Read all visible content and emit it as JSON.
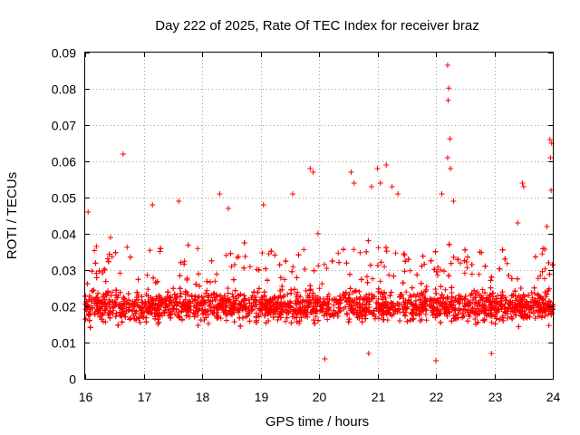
{
  "chart_data": {
    "type": "scatter",
    "title": "Day 222 of 2025, Rate Of TEC Index for receiver braz",
    "xlabel": "GPS time / hours",
    "ylabel": "ROTI / TECUs",
    "xlim": [
      16,
      24
    ],
    "ylim": [
      0,
      0.09
    ],
    "xticks": [
      "16",
      "17",
      "18",
      "19",
      "20",
      "21",
      "22",
      "23",
      "24"
    ],
    "yticks": [
      "0",
      "0.01",
      "0.02",
      "0.03",
      "0.04",
      "0.05",
      "0.06",
      "0.07",
      "0.08",
      "0.09"
    ],
    "grid": true,
    "marker": "+",
    "color": "#ff0000",
    "dense_band": {
      "x_start": 16,
      "x_end": 24,
      "typical_range": [
        0.008,
        0.035
      ],
      "center": 0.02
    },
    "notable_points": [
      {
        "x": 16.05,
        "y": 0.046
      },
      {
        "x": 16.65,
        "y": 0.062
      },
      {
        "x": 17.15,
        "y": 0.048
      },
      {
        "x": 17.6,
        "y": 0.049
      },
      {
        "x": 18.3,
        "y": 0.051
      },
      {
        "x": 18.45,
        "y": 0.047
      },
      {
        "x": 19.05,
        "y": 0.048
      },
      {
        "x": 19.55,
        "y": 0.051
      },
      {
        "x": 19.85,
        "y": 0.058
      },
      {
        "x": 19.9,
        "y": 0.057
      },
      {
        "x": 20.55,
        "y": 0.057
      },
      {
        "x": 20.6,
        "y": 0.054
      },
      {
        "x": 20.9,
        "y": 0.053
      },
      {
        "x": 21.0,
        "y": 0.058
      },
      {
        "x": 21.05,
        "y": 0.054
      },
      {
        "x": 21.15,
        "y": 0.059
      },
      {
        "x": 21.25,
        "y": 0.053
      },
      {
        "x": 21.35,
        "y": 0.051
      },
      {
        "x": 22.1,
        "y": 0.051
      },
      {
        "x": 22.2,
        "y": 0.0865
      },
      {
        "x": 22.22,
        "y": 0.0802
      },
      {
        "x": 22.21,
        "y": 0.0768
      },
      {
        "x": 22.24,
        "y": 0.0662
      },
      {
        "x": 22.2,
        "y": 0.061
      },
      {
        "x": 22.25,
        "y": 0.058
      },
      {
        "x": 22.3,
        "y": 0.049
      },
      {
        "x": 22.0,
        "y": 0.005
      },
      {
        "x": 23.4,
        "y": 0.043
      },
      {
        "x": 23.48,
        "y": 0.054
      },
      {
        "x": 23.5,
        "y": 0.053
      },
      {
        "x": 23.95,
        "y": 0.066
      },
      {
        "x": 23.98,
        "y": 0.065
      },
      {
        "x": 23.96,
        "y": 0.061
      },
      {
        "x": 23.97,
        "y": 0.052
      },
      {
        "x": 23.9,
        "y": 0.042
      },
      {
        "x": 20.1,
        "y": 0.0055
      },
      {
        "x": 20.85,
        "y": 0.007
      },
      {
        "x": 22.95,
        "y": 0.007
      }
    ]
  }
}
